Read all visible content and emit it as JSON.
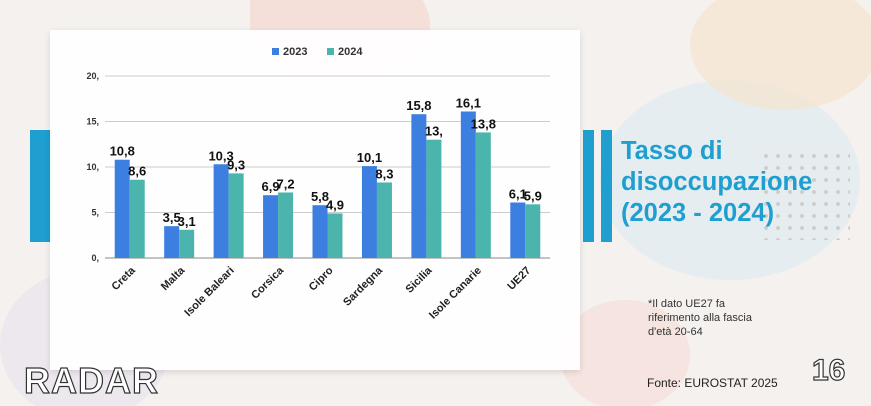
{
  "panel": {
    "title": "Tasso di\ndisoccupazione\n(2023 - 2024)",
    "footnote": "*Il dato UE27 fa\nriferimento alla fascia\nd'età 20-64",
    "source": "Fonte: EUROSTAT 2025"
  },
  "branding": {
    "logo_text": "RADAR",
    "page_number": "16"
  },
  "colors": {
    "series_2023": "#3d7fe0",
    "series_2024": "#4bb5ad",
    "accent": "#1f9fd0"
  },
  "chart_data": {
    "type": "bar",
    "categories": [
      "Creta",
      "Malta",
      "Isole Baleari",
      "Corsica",
      "Cipro",
      "Sardegna",
      "Sicilia",
      "Isole Canarie",
      "UE27"
    ],
    "series": [
      {
        "name": "2023",
        "values": [
          10.8,
          3.5,
          10.3,
          6.9,
          5.8,
          10.1,
          15.8,
          16.1,
          6.1
        ],
        "labels": [
          "10,8",
          "3,5",
          "10,3",
          "6,9",
          "5,8",
          "10,1",
          "15,8",
          "16,1",
          "6,1"
        ]
      },
      {
        "name": "2024",
        "values": [
          8.6,
          3.1,
          9.3,
          7.2,
          4.9,
          8.3,
          13.0,
          13.8,
          5.9
        ],
        "labels": [
          "8,6",
          "3,1",
          "9,3",
          "7,2",
          "4,9",
          "8,3",
          "13,",
          "13,8",
          "5,9"
        ]
      }
    ],
    "y_ticks": [
      {
        "value": 0,
        "label": "0,"
      },
      {
        "value": 5,
        "label": "5,"
      },
      {
        "value": 10,
        "label": "10,"
      },
      {
        "value": 15,
        "label": "15,"
      },
      {
        "value": 20,
        "label": "20,"
      }
    ],
    "ylim": [
      0,
      20
    ],
    "grid": true,
    "legend_position": "top-center"
  }
}
